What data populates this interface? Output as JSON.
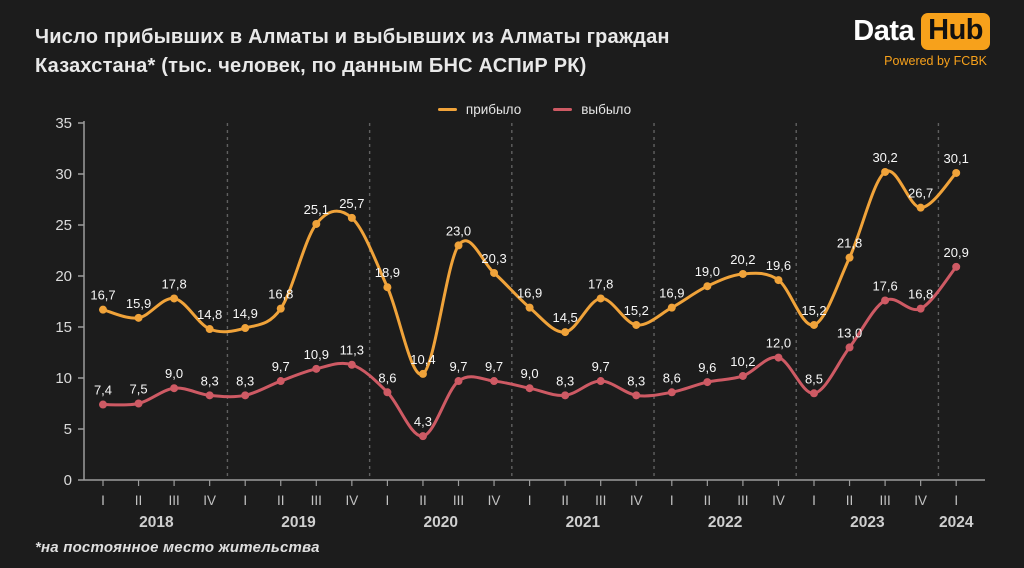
{
  "header": {
    "title_line1": "Число прибывших в Алматы и выбывших из Алматы граждан",
    "title_line2": "Казахстана* (тыс. человек, по данным БНС АСПиР РК)"
  },
  "logo": {
    "brand_left": "Data",
    "brand_right": "Hub",
    "tagline": "Powered by FCBK",
    "accent_color": "#F7A11B"
  },
  "legend": {
    "items": [
      {
        "label": "прибыло",
        "color": "#F0A33A"
      },
      {
        "label": "выбыло",
        "color": "#CE5A64"
      }
    ]
  },
  "footnote": "*на постоянное место жительства",
  "chart_data": {
    "type": "line",
    "title": "Число прибывших в Алматы и выбывших из Алматы граждан Казахстана (тыс. человек, по данным БНС АСПиР РК)",
    "x_quarter_labels": [
      "I",
      "II",
      "III",
      "IV",
      "I",
      "II",
      "III",
      "IV",
      "I",
      "II",
      "III",
      "IV",
      "I",
      "II",
      "III",
      "IV",
      "I",
      "II",
      "III",
      "IV",
      "I",
      "II",
      "III",
      "IV",
      "I"
    ],
    "year_groups": [
      {
        "label": "2018",
        "quarters": 4
      },
      {
        "label": "2019",
        "quarters": 4
      },
      {
        "label": "2020",
        "quarters": 4
      },
      {
        "label": "2021",
        "quarters": 4
      },
      {
        "label": "2022",
        "quarters": 4
      },
      {
        "label": "2023",
        "quarters": 4
      },
      {
        "label": "2024",
        "quarters": 1
      }
    ],
    "series": [
      {
        "name": "прибыло",
        "semantic": "arrived",
        "color": "#F0A33A",
        "values": [
          16.7,
          15.9,
          17.8,
          14.8,
          14.9,
          16.8,
          25.1,
          25.7,
          18.9,
          10.4,
          23.0,
          20.3,
          16.9,
          14.5,
          17.8,
          15.2,
          16.9,
          19.0,
          20.2,
          19.6,
          15.2,
          21.8,
          30.2,
          26.7,
          30.1
        ]
      },
      {
        "name": "выбыло",
        "semantic": "departed",
        "color": "#CE5A64",
        "values": [
          7.4,
          7.5,
          9.0,
          8.3,
          8.3,
          9.7,
          10.9,
          11.3,
          8.6,
          4.3,
          9.7,
          9.7,
          9.0,
          8.3,
          9.7,
          8.3,
          8.6,
          9.6,
          10.2,
          12.0,
          8.5,
          13.0,
          17.6,
          16.8,
          20.9
        ]
      }
    ],
    "y_ticks": [
      0,
      5,
      10,
      15,
      20,
      25,
      30,
      35
    ],
    "ylim": [
      0,
      35
    ],
    "grid": "dashed vertical lines at year boundaries, no horizontal gridlines",
    "legend_position": "top-center",
    "decimal_separator": ",",
    "data_labels": true
  },
  "colors": {
    "background": "#1C1C1C",
    "axis": "#9C9C9C",
    "grid_dash": "#606060",
    "data_label": "#F7F7F7"
  }
}
